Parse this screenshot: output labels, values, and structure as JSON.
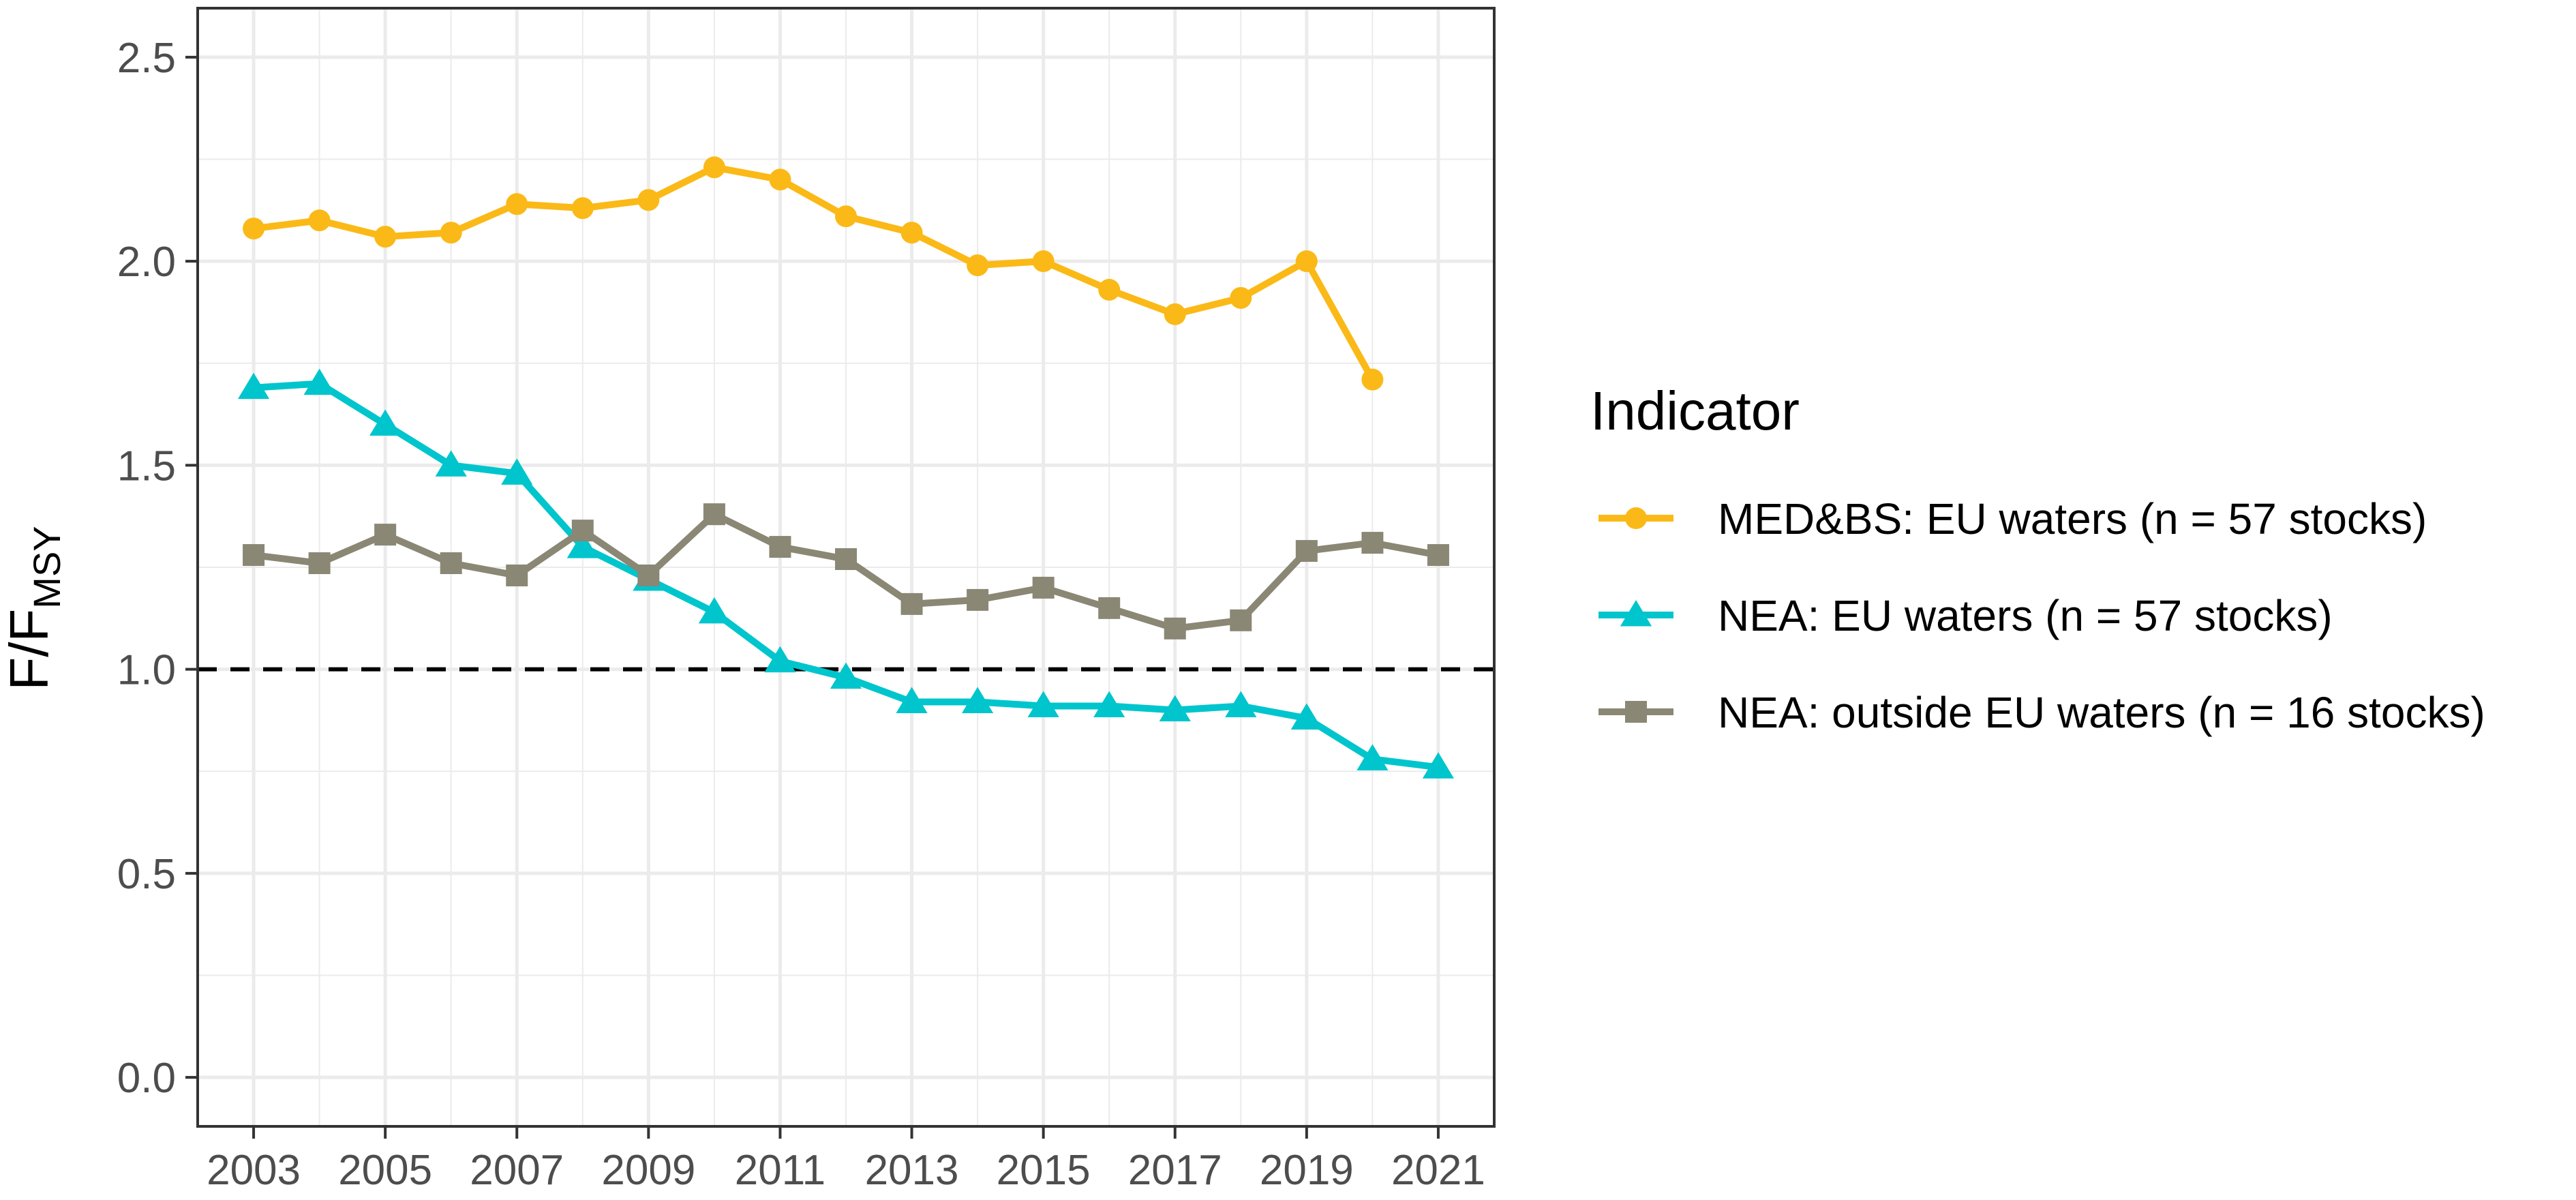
{
  "chart_data": {
    "type": "line",
    "title": "",
    "xlabel": "",
    "ylabel": "F/F",
    "ylabel_subscript": "MSY",
    "x": [
      2003,
      2004,
      2005,
      2006,
      2007,
      2008,
      2009,
      2010,
      2011,
      2012,
      2013,
      2014,
      2015,
      2016,
      2017,
      2018,
      2019,
      2020,
      2021
    ],
    "xlim": [
      2002.15,
      2021.85
    ],
    "ylim": [
      -0.12,
      2.62
    ],
    "x_ticks": [
      "2003",
      "2005",
      "2007",
      "2009",
      "2011",
      "2013",
      "2015",
      "2017",
      "2019",
      "2021"
    ],
    "y_ticks": [
      "0.0",
      "0.5",
      "1.0",
      "1.5",
      "2.0",
      "2.5"
    ],
    "grid": true,
    "reference_line": {
      "y": 1.0,
      "style": "dashed",
      "color": "#000000"
    },
    "legend": {
      "title": "Indicator",
      "position": "right"
    },
    "series": [
      {
        "name": "MED&BS: EU waters (n = 57 stocks)",
        "color": "#fbb917",
        "marker": "circle",
        "x": [
          2003,
          2004,
          2005,
          2006,
          2007,
          2008,
          2009,
          2010,
          2011,
          2012,
          2013,
          2014,
          2015,
          2016,
          2017,
          2018,
          2019,
          2020
        ],
        "values": [
          2.08,
          2.1,
          2.06,
          2.07,
          2.14,
          2.13,
          2.15,
          2.23,
          2.2,
          2.11,
          2.07,
          1.99,
          2.0,
          1.93,
          1.87,
          1.91,
          2.0,
          1.71
        ]
      },
      {
        "name": "NEA: EU waters (n = 57 stocks)",
        "color": "#00c5cd",
        "marker": "triangle",
        "x": [
          2003,
          2004,
          2005,
          2006,
          2007,
          2008,
          2009,
          2010,
          2011,
          2012,
          2013,
          2014,
          2015,
          2016,
          2017,
          2018,
          2019,
          2020,
          2021
        ],
        "values": [
          1.69,
          1.7,
          1.6,
          1.5,
          1.48,
          1.3,
          1.22,
          1.14,
          1.02,
          0.98,
          0.92,
          0.92,
          0.91,
          0.91,
          0.9,
          0.91,
          0.88,
          0.78,
          0.76
        ]
      },
      {
        "name": "NEA: outside EU waters (n = 16 stocks)",
        "color": "#8a8775",
        "marker": "square",
        "x": [
          2003,
          2004,
          2005,
          2006,
          2007,
          2008,
          2009,
          2010,
          2011,
          2012,
          2013,
          2014,
          2015,
          2016,
          2017,
          2018,
          2019,
          2020,
          2021
        ],
        "values": [
          1.28,
          1.26,
          1.33,
          1.26,
          1.23,
          1.34,
          1.23,
          1.38,
          1.3,
          1.27,
          1.16,
          1.17,
          1.2,
          1.15,
          1.1,
          1.12,
          1.29,
          1.31,
          1.28
        ]
      }
    ]
  }
}
